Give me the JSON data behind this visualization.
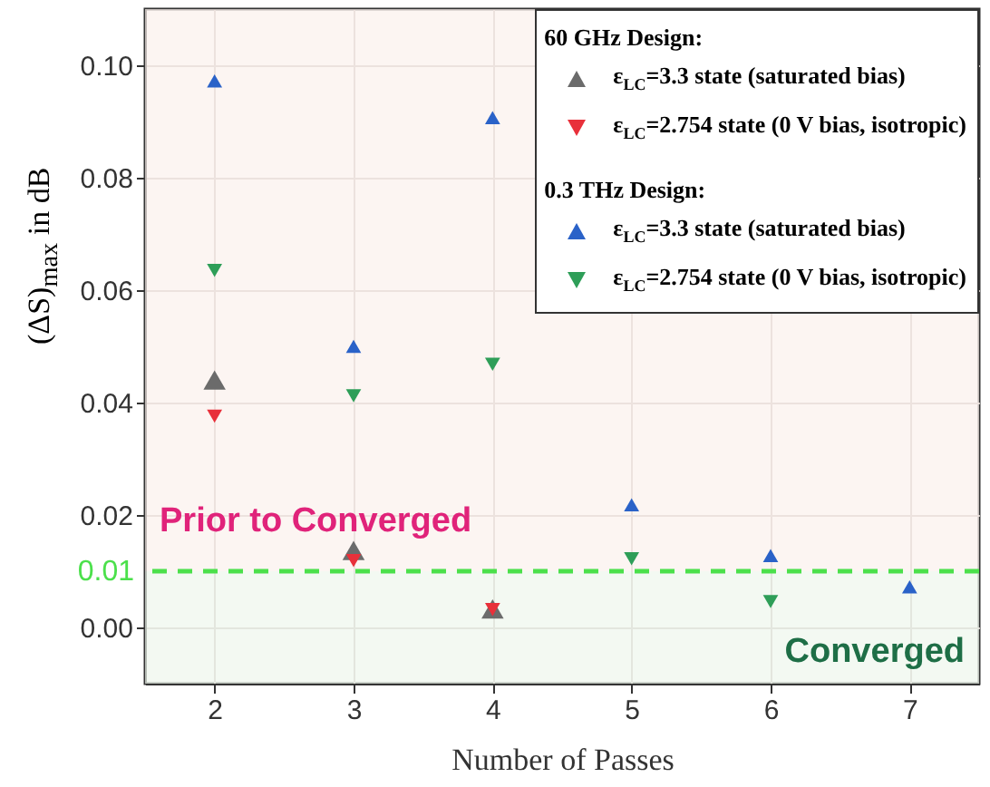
{
  "chart_data": {
    "type": "scatter",
    "xlabel": "Number of Passes",
    "ylabel": "(ΔS)$_{max}$ in dB",
    "x": [
      2,
      3,
      4,
      5,
      6,
      7
    ],
    "series": [
      {
        "name": "ε$_{LC}$=3.3 state (saturated bias)",
        "color": "#6b6b6b",
        "marker": "triangle-up",
        "values": [
          0.044,
          0.0137,
          0.0033,
          null,
          null,
          null
        ]
      },
      {
        "name": "ε$_{LC}$=2.754 state (0 V bias, isotropic)",
        "color": "#e8303a",
        "marker": "triangle-down",
        "values": [
          0.0376,
          0.0119,
          0.0032,
          null,
          null,
          null
        ]
      },
      {
        "name": "ε$_{LC}$=3.3 state (saturated bias)",
        "color": "#2a62c8",
        "marker": "triangle-up",
        "values": [
          0.0972,
          0.05,
          0.0907,
          0.0218,
          0.0128,
          0.0072
        ]
      },
      {
        "name": "ε$_{LC}$=2.754 state (0 V bias, isotropic)",
        "color": "#2e9e58",
        "marker": "triangle-down",
        "values": [
          0.0635,
          0.0412,
          0.0468,
          0.0122,
          0.0046,
          null
        ]
      }
    ],
    "annotations": [
      "60 GHz Design:",
      "0.3 THz Design:"
    ],
    "bands": [
      {
        "axis": "y",
        "from": 0.01,
        "to": 0.11,
        "label": "Prior to Converged",
        "color": "#fbf1ed"
      },
      {
        "axis": "y",
        "from": -0.01,
        "to": 0.01,
        "label": "Converged",
        "color": "#eef7ec"
      }
    ],
    "ref_lines": [
      {
        "axis": "y",
        "value": 0.01,
        "label": "0.01",
        "color": "#4be04b",
        "line_style": "dashed"
      }
    ],
    "xlim": [
      1.5,
      7.5
    ],
    "xticks": [
      2,
      3,
      4,
      5,
      6,
      7
    ],
    "ylim": [
      -0.01,
      0.11
    ],
    "yticks": [
      {
        "value": 0,
        "label": "0.00"
      },
      {
        "value": 0.02,
        "label": "0.02"
      },
      {
        "value": 0.04,
        "label": "0.04"
      },
      {
        "value": 0.06,
        "label": "0.06"
      },
      {
        "value": 0.08,
        "label": "0.08"
      },
      {
        "value": 0.1,
        "label": "0.10"
      }
    ],
    "grid": true,
    "legend": "top right"
  }
}
